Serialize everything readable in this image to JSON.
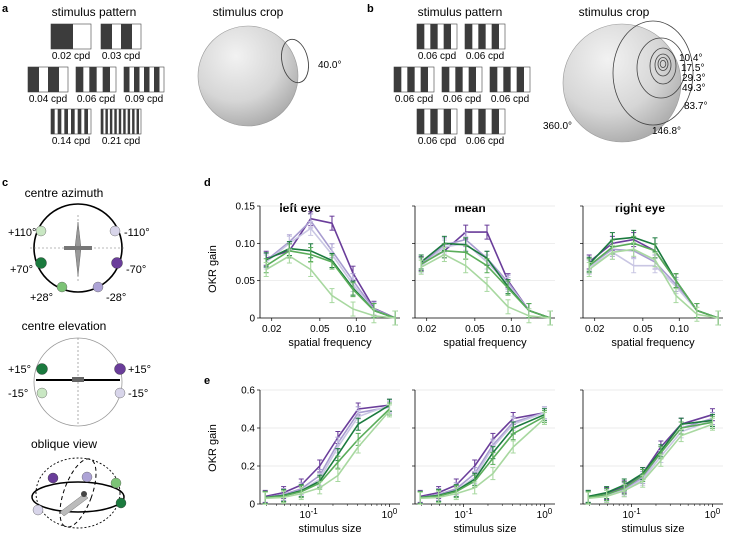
{
  "panel_letters": {
    "a": "a",
    "b": "b",
    "c": "c",
    "d": "d",
    "e": "e"
  },
  "panel_a": {
    "pattern_title": "stimulus pattern",
    "crop_title": "stimulus crop",
    "crop_angle": "40.0°",
    "gratings": [
      {
        "label": "0.02 cpd",
        "bars": 1
      },
      {
        "label": "0.03 cpd",
        "bars": 2
      },
      {
        "label": "0.04 cpd",
        "bars": 2
      },
      {
        "label": "0.06 cpd",
        "bars": 3
      },
      {
        "label": "0.09 cpd",
        "bars": 4
      },
      {
        "label": "0.14 cpd",
        "bars": 6
      },
      {
        "label": "0.21 cpd",
        "bars": 9
      }
    ]
  },
  "panel_b": {
    "pattern_title": "stimulus pattern",
    "crop_title": "stimulus crop",
    "grating_label": "0.06 cpd",
    "crop_angles": [
      "10.4°",
      "17.5°",
      "29.3°",
      "49.3°",
      "83.7°",
      "146.8°",
      "360.0°"
    ]
  },
  "panel_c": {
    "azimuth_title": "centre azimuth",
    "azimuth_labels": [
      "+110°",
      "-110°",
      "+70°",
      "-70°",
      "+28°",
      "-28°"
    ],
    "elevation_title": "centre elevation",
    "elevation_labels": [
      "+15°",
      "+15°",
      "-15°",
      "-15°"
    ],
    "oblique_title": "oblique view"
  },
  "colors": {
    "dark_purple": "#6a3d9a",
    "light_purple": "#a89cd0",
    "pale_lilac": "#c9c6e3",
    "dark_green": "#1b7a3e",
    "mid_green": "#5aad5a",
    "light_green": "#a8d8a0"
  },
  "chart_data": [
    {
      "type": "line",
      "title": "left eye",
      "xlabel": "spatial frequency",
      "ylabel": "OKR gain",
      "xscale": "log",
      "x": [
        0.018,
        0.028,
        0.042,
        0.063,
        0.094,
        0.14,
        0.21
      ],
      "xticks": [
        "0.02",
        "0.05",
        "0.10"
      ],
      "yticks": [
        "0",
        "0.05",
        "0.10",
        "0.15"
      ],
      "ylim": [
        0,
        0.15
      ],
      "series": [
        {
          "color": "#6a3d9a",
          "values": [
            0.08,
            0.09,
            0.133,
            0.127,
            0.06,
            0.013,
            0.0
          ]
        },
        {
          "color": "#a89cd0",
          "values": [
            0.077,
            0.102,
            0.13,
            0.09,
            0.05,
            0.012,
            0.0
          ]
        },
        {
          "color": "#c9c6e3",
          "values": [
            0.075,
            0.1,
            0.12,
            0.085,
            0.045,
            0.01,
            0.0
          ]
        },
        {
          "color": "#1b7a3e",
          "values": [
            0.078,
            0.093,
            0.09,
            0.077,
            0.04,
            0.01,
            0.0
          ]
        },
        {
          "color": "#5aad5a",
          "values": [
            0.07,
            0.09,
            0.085,
            0.075,
            0.038,
            0.01,
            0.0
          ]
        },
        {
          "color": "#a8d8a0",
          "values": [
            0.065,
            0.083,
            0.065,
            0.03,
            0.012,
            0.003,
            0.0
          ]
        }
      ]
    },
    {
      "type": "line",
      "title": "mean",
      "xlabel": "spatial frequency",
      "xscale": "log",
      "x": [
        0.018,
        0.028,
        0.042,
        0.063,
        0.094,
        0.14,
        0.21
      ],
      "xticks": [
        "0.02",
        "0.05",
        "0.10"
      ],
      "ylim": [
        0,
        0.15
      ],
      "series": [
        {
          "color": "#6a3d9a",
          "values": [
            0.073,
            0.09,
            0.115,
            0.115,
            0.05,
            0.01,
            0.0
          ]
        },
        {
          "color": "#a89cd0",
          "values": [
            0.072,
            0.098,
            0.105,
            0.08,
            0.048,
            0.01,
            0.0
          ]
        },
        {
          "color": "#c9c6e3",
          "values": [
            0.07,
            0.095,
            0.1,
            0.075,
            0.045,
            0.01,
            0.0
          ]
        },
        {
          "color": "#1b7a3e",
          "values": [
            0.075,
            0.1,
            0.098,
            0.08,
            0.042,
            0.01,
            0.0
          ]
        },
        {
          "color": "#5aad5a",
          "values": [
            0.072,
            0.09,
            0.088,
            0.07,
            0.04,
            0.01,
            0.0
          ]
        },
        {
          "color": "#a8d8a0",
          "values": [
            0.068,
            0.085,
            0.07,
            0.045,
            0.015,
            0.003,
            0.0
          ]
        }
      ]
    },
    {
      "type": "line",
      "title": "right eye",
      "xlabel": "spatial frequency",
      "xscale": "log",
      "x": [
        0.018,
        0.028,
        0.042,
        0.063,
        0.094,
        0.14,
        0.21
      ],
      "xticks": [
        "0.02",
        "0.05",
        "0.10"
      ],
      "ylim": [
        0,
        0.15
      ],
      "series": [
        {
          "color": "#6a3d9a",
          "values": [
            0.075,
            0.1,
            0.105,
            0.09,
            0.05,
            0.01,
            0.0
          ]
        },
        {
          "color": "#a89cd0",
          "values": [
            0.07,
            0.092,
            0.09,
            0.075,
            0.045,
            0.01,
            0.0
          ]
        },
        {
          "color": "#c9c6e3",
          "values": [
            0.068,
            0.088,
            0.07,
            0.07,
            0.042,
            0.01,
            0.0
          ]
        },
        {
          "color": "#1b7a3e",
          "values": [
            0.072,
            0.105,
            0.108,
            0.098,
            0.05,
            0.01,
            0.0
          ]
        },
        {
          "color": "#5aad5a",
          "values": [
            0.07,
            0.095,
            0.1,
            0.09,
            0.05,
            0.01,
            0.0
          ]
        },
        {
          "color": "#a8d8a0",
          "values": [
            0.065,
            0.088,
            0.092,
            0.078,
            0.03,
            0.005,
            0.0
          ]
        }
      ]
    },
    {
      "type": "line",
      "xlabel": "stimulus size",
      "ylabel": "OKR gain",
      "xscale": "log",
      "x": [
        0.029,
        0.049,
        0.081,
        0.137,
        0.23,
        0.41,
        1.0
      ],
      "xticks": [
        "10^-1",
        "10^0"
      ],
      "yticks": [
        "0",
        "0.2",
        "0.4",
        "0.6"
      ],
      "ylim": [
        0,
        0.6
      ],
      "series": [
        {
          "color": "#6a3d9a",
          "values": [
            0.04,
            0.06,
            0.1,
            0.2,
            0.35,
            0.5,
            0.52
          ]
        },
        {
          "color": "#a89cd0",
          "values": [
            0.035,
            0.05,
            0.08,
            0.15,
            0.32,
            0.48,
            0.51
          ]
        },
        {
          "color": "#c9c6e3",
          "values": [
            0.032,
            0.045,
            0.07,
            0.13,
            0.3,
            0.46,
            0.52
          ]
        },
        {
          "color": "#1b7a3e",
          "values": [
            0.035,
            0.045,
            0.07,
            0.12,
            0.26,
            0.42,
            0.52
          ]
        },
        {
          "color": "#5aad5a",
          "values": [
            0.033,
            0.042,
            0.065,
            0.11,
            0.22,
            0.34,
            0.5
          ]
        },
        {
          "color": "#a8d8a0",
          "values": [
            0.03,
            0.035,
            0.055,
            0.085,
            0.15,
            0.3,
            0.49
          ]
        }
      ]
    },
    {
      "type": "line",
      "xlabel": "stimulus size",
      "xscale": "log",
      "x": [
        0.029,
        0.049,
        0.081,
        0.137,
        0.23,
        0.41,
        1.0
      ],
      "xticks": [
        "10^-1",
        "10^0"
      ],
      "ylim": [
        0,
        0.6
      ],
      "series": [
        {
          "color": "#6a3d9a",
          "values": [
            0.04,
            0.06,
            0.1,
            0.2,
            0.34,
            0.45,
            0.48
          ]
        },
        {
          "color": "#a89cd0",
          "values": [
            0.035,
            0.05,
            0.08,
            0.16,
            0.31,
            0.43,
            0.48
          ]
        },
        {
          "color": "#c9c6e3",
          "values": [
            0.032,
            0.045,
            0.07,
            0.14,
            0.3,
            0.42,
            0.48
          ]
        },
        {
          "color": "#1b7a3e",
          "values": [
            0.035,
            0.045,
            0.07,
            0.13,
            0.27,
            0.4,
            0.47
          ]
        },
        {
          "color": "#5aad5a",
          "values": [
            0.033,
            0.042,
            0.065,
            0.12,
            0.24,
            0.37,
            0.46
          ]
        },
        {
          "color": "#a8d8a0",
          "values": [
            0.03,
            0.035,
            0.055,
            0.085,
            0.16,
            0.3,
            0.45
          ]
        }
      ]
    },
    {
      "type": "line",
      "xlabel": "stimulus size",
      "xscale": "log",
      "x": [
        0.029,
        0.049,
        0.081,
        0.137,
        0.23,
        0.41,
        1.0
      ],
      "xticks": [
        "10^-1",
        "10^0"
      ],
      "ylim": [
        0,
        0.6
      ],
      "series": [
        {
          "color": "#6a3d9a",
          "values": [
            0.04,
            0.055,
            0.09,
            0.16,
            0.3,
            0.42,
            0.47
          ]
        },
        {
          "color": "#a89cd0",
          "values": [
            0.035,
            0.05,
            0.08,
            0.14,
            0.27,
            0.4,
            0.45
          ]
        },
        {
          "color": "#c9c6e3",
          "values": [
            0.032,
            0.045,
            0.07,
            0.13,
            0.25,
            0.38,
            0.44
          ]
        },
        {
          "color": "#1b7a3e",
          "values": [
            0.04,
            0.06,
            0.1,
            0.16,
            0.28,
            0.42,
            0.44
          ]
        },
        {
          "color": "#5aad5a",
          "values": [
            0.035,
            0.05,
            0.085,
            0.15,
            0.27,
            0.4,
            0.43
          ]
        },
        {
          "color": "#a8d8a0",
          "values": [
            0.03,
            0.04,
            0.07,
            0.12,
            0.23,
            0.36,
            0.42
          ]
        }
      ]
    }
  ]
}
